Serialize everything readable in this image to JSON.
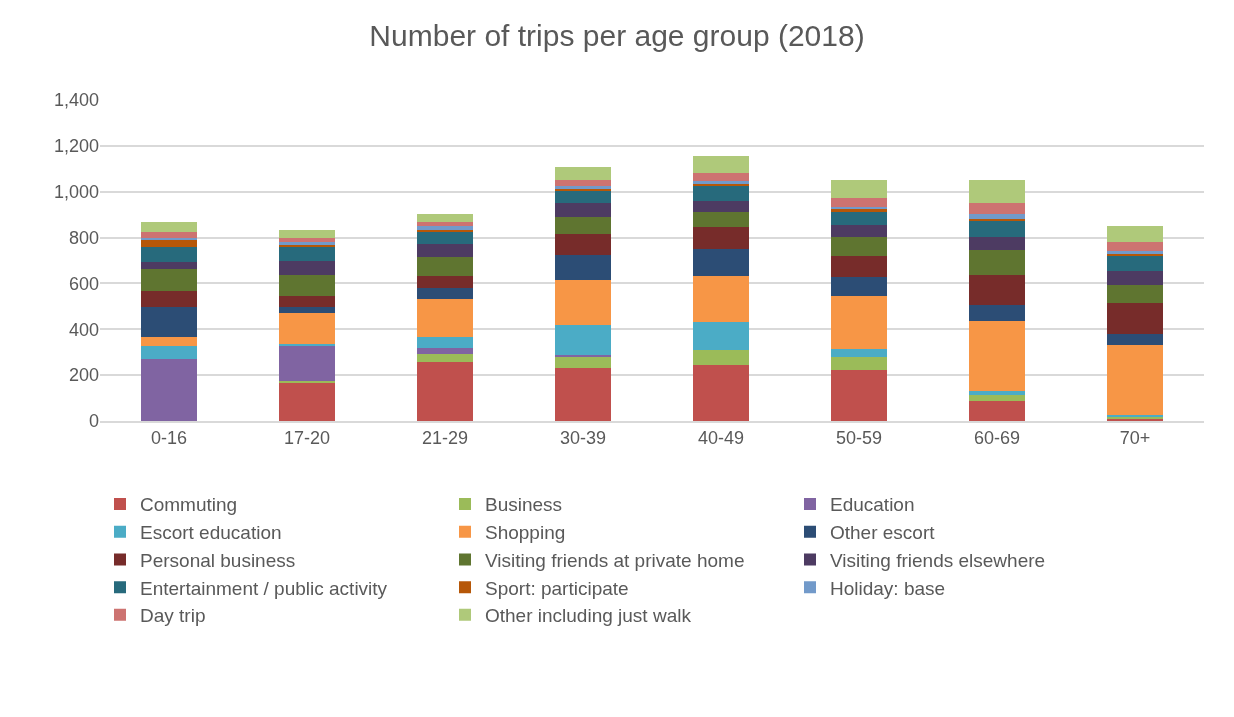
{
  "chart_data": {
    "type": "bar",
    "title": "Number of trips per age group (2018)",
    "stacked": true,
    "categories": [
      "0-16",
      "17-20",
      "21-29",
      "30-39",
      "40-49",
      "50-59",
      "60-69",
      "70+"
    ],
    "ylim": [
      0,
      1400
    ],
    "yticks": [
      0,
      200,
      400,
      600,
      800,
      {
        "value": 1000,
        "label": "1,000"
      },
      {
        "value": 1200,
        "label": "1,200"
      },
      {
        "value": 1400,
        "label": "1,400"
      }
    ],
    "grid": "y",
    "legend": "bottom",
    "series": [
      {
        "name": "Commuting",
        "color": "#c0504d",
        "values": [
          0,
          164,
          259,
          233,
          243,
          224,
          88,
          10
        ]
      },
      {
        "name": "Business",
        "color": "#9bbb59",
        "values": [
          0,
          10,
          34,
          48,
          65,
          57,
          25,
          8
        ]
      },
      {
        "name": "Education",
        "color": "#8064a2",
        "values": [
          270,
          151,
          25,
          6,
          0,
          0,
          0,
          0
        ]
      },
      {
        "name": "Escort education",
        "color": "#4bacc6",
        "values": [
          55,
          12,
          50,
          132,
          123,
          33,
          17,
          7
        ]
      },
      {
        "name": "Shopping",
        "color": "#f79646",
        "values": [
          41,
          135,
          164,
          195,
          200,
          231,
          304,
          308
        ]
      },
      {
        "name": "Other escort",
        "color": "#2c4d75",
        "values": [
          132,
          26,
          50,
          111,
          119,
          81,
          73,
          46
        ]
      },
      {
        "name": "Personal business",
        "color": "#772c2a",
        "values": [
          69,
          48,
          52,
          91,
          94,
          95,
          130,
          135
        ]
      },
      {
        "name": "Visiting friends at private home",
        "color": "#5f7530",
        "values": [
          98,
          90,
          82,
          73,
          67,
          80,
          107,
          81
        ]
      },
      {
        "name": "Visiting friends elsewhere",
        "color": "#4d3b62",
        "values": [
          29,
          63,
          58,
          62,
          49,
          56,
          59,
          61
        ]
      },
      {
        "name": "Entertainment / public activity",
        "color": "#276a7c",
        "values": [
          66,
          61,
          51,
          51,
          66,
          53,
          69,
          62
        ]
      },
      {
        "name": "Sport: participate",
        "color": "#b65708",
        "values": [
          28,
          8,
          10,
          12,
          8,
          13,
          11,
          9
        ]
      },
      {
        "name": "Holiday: base",
        "color": "#729aca",
        "values": [
          10,
          11,
          15,
          11,
          13,
          12,
          18,
          14
        ]
      },
      {
        "name": "Day trip",
        "color": "#cd7371",
        "values": [
          25,
          18,
          16,
          28,
          34,
          36,
          48,
          41
        ]
      },
      {
        "name": "Other including just walk",
        "color": "#afc97a",
        "values": [
          47,
          35,
          38,
          53,
          76,
          81,
          100,
          68
        ]
      }
    ]
  }
}
